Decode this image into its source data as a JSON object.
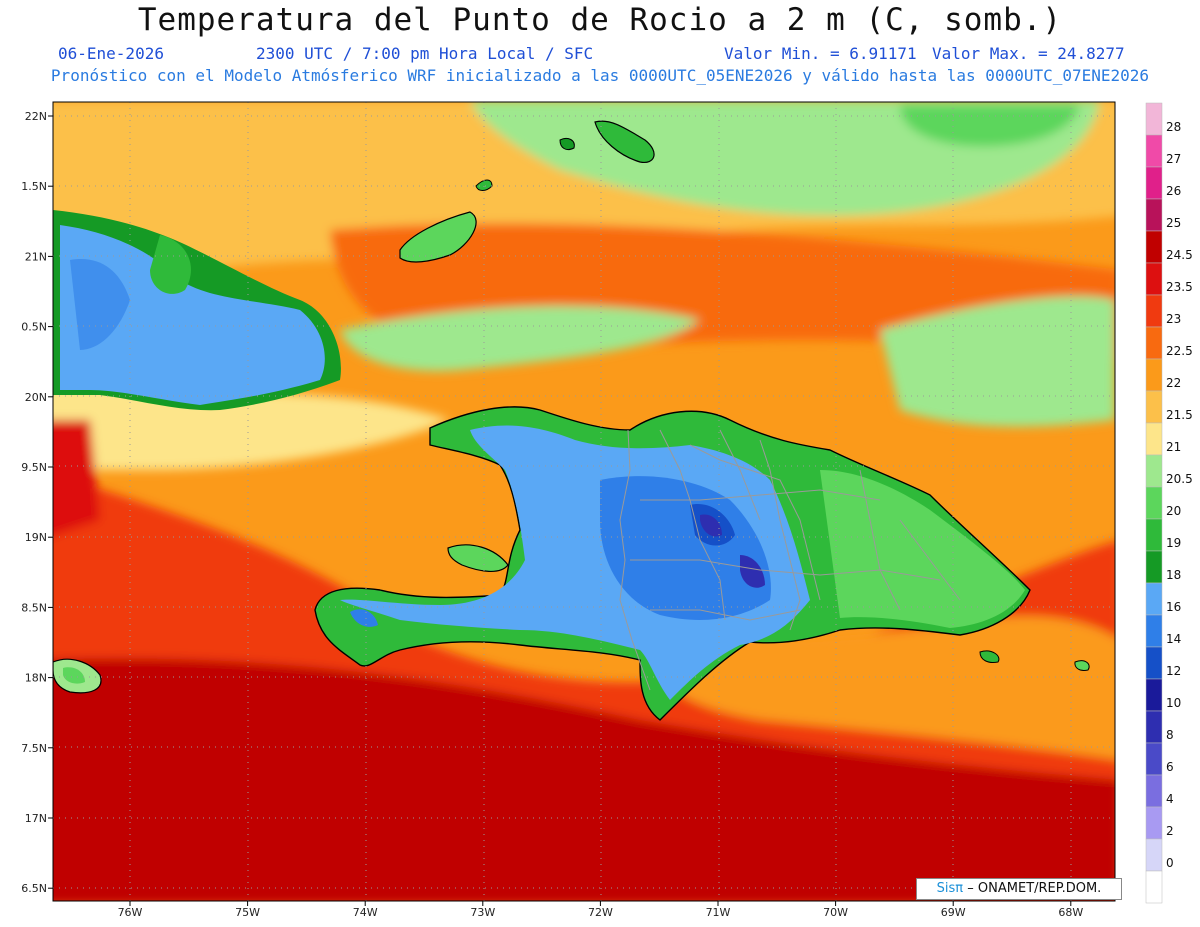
{
  "title": "Temperatura del Punto de Rocio a 2 m (C, somb.)",
  "date": "06-Ene-2026",
  "time_info": "2300 UTC / 7:00 pm Hora Local / SFC",
  "min_value": "Valor Min. = 6.91171",
  "max_value": "Valor Max. = 24.8277",
  "model_info": "Pronóstico con el Modelo Atmósferico WRF inicializado a las 0000UTC_05ENE2026 y válido hasta las  0000UTC_07ENE2026",
  "lat_labels": [
    "22N",
    "1.5N",
    "21N",
    "0.5N",
    "20N",
    "9.5N",
    "19N",
    "8.5N",
    "18N",
    "7.5N",
    "17N",
    "6.5N"
  ],
  "lon_labels": [
    "76W",
    "75W",
    "74W",
    "73W",
    "72W",
    "71W",
    "70W",
    "69W",
    "68W"
  ],
  "colorbar": [
    {
      "label": "28",
      "color": "#f2b6d8"
    },
    {
      "label": "27",
      "color": "#f04aa8"
    },
    {
      "label": "26",
      "color": "#e0208a"
    },
    {
      "label": "25",
      "color": "#b8125a"
    },
    {
      "label": "24.5",
      "color": "#c00000"
    },
    {
      "label": "23.5",
      "color": "#dd1010"
    },
    {
      "label": "23",
      "color": "#f03a10"
    },
    {
      "label": "22.5",
      "color": "#f86a10"
    },
    {
      "label": "22",
      "color": "#fb9a1a"
    },
    {
      "label": "21.5",
      "color": "#fcc04a"
    },
    {
      "label": "21",
      "color": "#fde58a"
    },
    {
      "label": "20.5",
      "color": "#9ee88e"
    },
    {
      "label": "20",
      "color": "#5cd65c"
    },
    {
      "label": "19",
      "color": "#2fba3a"
    },
    {
      "label": "18",
      "color": "#159a25"
    },
    {
      "label": "16",
      "color": "#5aa8f5"
    },
    {
      "label": "14",
      "color": "#2f7fe8"
    },
    {
      "label": "12",
      "color": "#1550c8"
    },
    {
      "label": "10",
      "color": "#1a1a9a"
    },
    {
      "label": "8",
      "color": "#2e2eb0"
    },
    {
      "label": "6",
      "color": "#4a4ac8"
    },
    {
      "label": "4",
      "color": "#7a6ee0"
    },
    {
      "label": "2",
      "color": "#a89af2"
    },
    {
      "label": "0",
      "color": "#d6d6f8"
    },
    {
      "label": "",
      "color": "#ffffff"
    }
  ],
  "credit_brand": "Sisπ",
  "credit_text": "– ONAMET/REP.DOM."
}
